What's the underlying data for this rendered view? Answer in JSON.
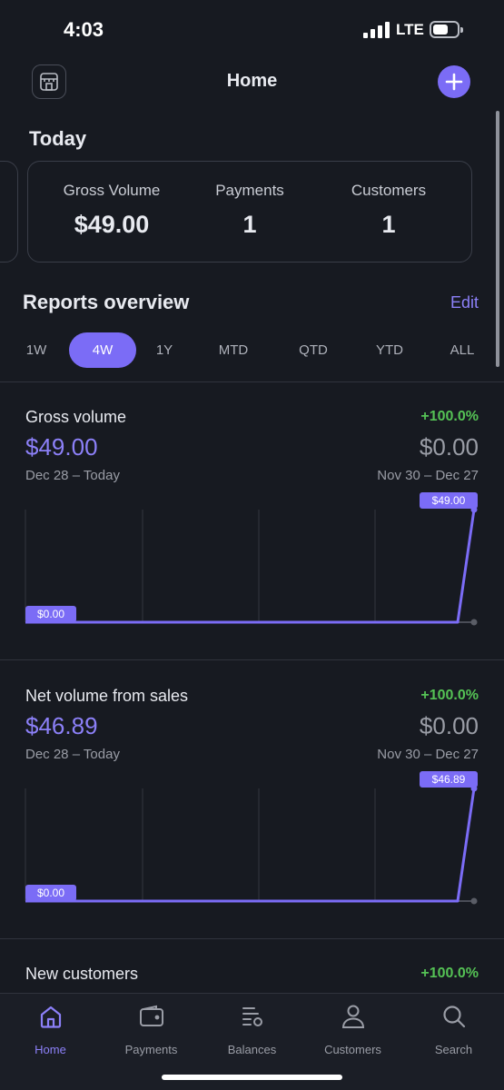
{
  "status_bar": {
    "time": "4:03",
    "network": "LTE"
  },
  "header": {
    "title": "Home"
  },
  "today": {
    "title": "Today",
    "stats": [
      {
        "label": "Gross Volume",
        "value": "$49.00"
      },
      {
        "label": "Payments",
        "value": "1"
      },
      {
        "label": "Customers",
        "value": "1"
      }
    ]
  },
  "reports": {
    "title": "Reports overview",
    "edit_label": "Edit",
    "tabs": [
      "1W",
      "4W",
      "1Y",
      "MTD",
      "QTD",
      "YTD",
      "ALL"
    ],
    "active_tab": "4W"
  },
  "metrics": [
    {
      "title": "Gross volume",
      "change": "+100.0%",
      "value": "$49.00",
      "previous_value": "$0.00",
      "range": "Dec 28 – Today",
      "previous_range": "Nov 30 – Dec 27",
      "chart_data": {
        "type": "line",
        "series": [
          {
            "values": [
              0,
              0,
              0,
              0,
              0,
              0,
              0,
              0,
              0,
              0,
              0,
              0,
              0,
              0,
              0,
              0,
              0,
              0,
              0,
              0,
              0,
              0,
              0,
              0,
              0,
              0,
              0,
              49
            ]
          }
        ],
        "ylim": [
          0,
          49
        ],
        "start_label": "$0.00",
        "end_label": "$49.00"
      }
    },
    {
      "title": "Net volume from sales",
      "change": "+100.0%",
      "value": "$46.89",
      "previous_value": "$0.00",
      "range": "Dec 28 – Today",
      "previous_range": "Nov 30 – Dec 27",
      "chart_data": {
        "type": "line",
        "series": [
          {
            "values": [
              0,
              0,
              0,
              0,
              0,
              0,
              0,
              0,
              0,
              0,
              0,
              0,
              0,
              0,
              0,
              0,
              0,
              0,
              0,
              0,
              0,
              0,
              0,
              0,
              0,
              0,
              0,
              46.89
            ]
          }
        ],
        "ylim": [
          0,
          46.89
        ],
        "start_label": "$0.00",
        "end_label": "$46.89"
      }
    },
    {
      "title": "New customers",
      "change": "+100.0%"
    }
  ],
  "bottom_nav": [
    {
      "label": "Home",
      "icon": "home-icon",
      "active": true
    },
    {
      "label": "Payments",
      "icon": "wallet-icon",
      "active": false
    },
    {
      "label": "Balances",
      "icon": "balances-icon",
      "active": false
    },
    {
      "label": "Customers",
      "icon": "person-icon",
      "active": false
    },
    {
      "label": "Search",
      "icon": "search-icon",
      "active": false
    }
  ],
  "colors": {
    "accent": "#7b6cf6",
    "positive": "#55c255",
    "background": "#171a21"
  }
}
